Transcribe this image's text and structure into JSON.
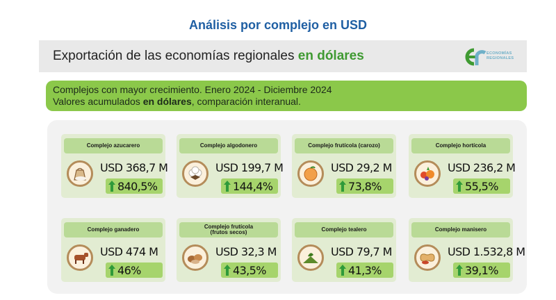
{
  "page_title": "Análisis por complejo en USD",
  "header": {
    "title_plain": "Exportación de las economías regionales ",
    "title_accent": "en dólares",
    "logo": {
      "text_line1": "ECONOMÍAS",
      "text_line2": "REGIONALES",
      "icon": "er-logo-icon"
    }
  },
  "subtitle": {
    "line1": "Complejos con mayor crecimiento. Enero 2024 - Diciembre 2024",
    "line2_prefix": "Valores acumulados ",
    "line2_bold": "en dólares",
    "line2_suffix": ", comparación interanual."
  },
  "colors": {
    "title_blue": "#1f5fa3",
    "accent_green": "#3f9a32",
    "bar_green": "#8bc84a",
    "card_bg": "#e2ecd2",
    "growth_bg": "#a6d46c",
    "arrow_green": "#2f9a3a"
  },
  "cards": [
    {
      "title": "Complejo azucarero",
      "value": "USD 368,7 M",
      "growth": "840,5%",
      "icon": "sugar-icon"
    },
    {
      "title": "Complejo algodonero",
      "value": "USD 199,7 M",
      "growth": "144,4%",
      "icon": "cotton-icon"
    },
    {
      "title": "Complejo frutícola (carozo)",
      "value": "USD 29,2 M",
      "growth": "73,8%",
      "icon": "peach-icon"
    },
    {
      "title": "Complejo hortícola",
      "value": "USD 236,2 M",
      "growth": "55,5%",
      "icon": "vegetables-icon"
    },
    {
      "title": "Complejo ganadero",
      "value": "USD 474 M",
      "growth": "46%",
      "icon": "cow-icon"
    },
    {
      "title": "Complejo frutícola\n(frutos secos)",
      "value": "USD 32,3 M",
      "growth": "43,5%",
      "icon": "nuts-icon"
    },
    {
      "title": "Complejo tealero",
      "value": "USD 79,7 M",
      "growth": "41,3%",
      "icon": "tea-icon"
    },
    {
      "title": "Complejo manisero",
      "value": "USD 1.532,8 M",
      "growth": "39,1%",
      "icon": "peanut-icon"
    }
  ]
}
